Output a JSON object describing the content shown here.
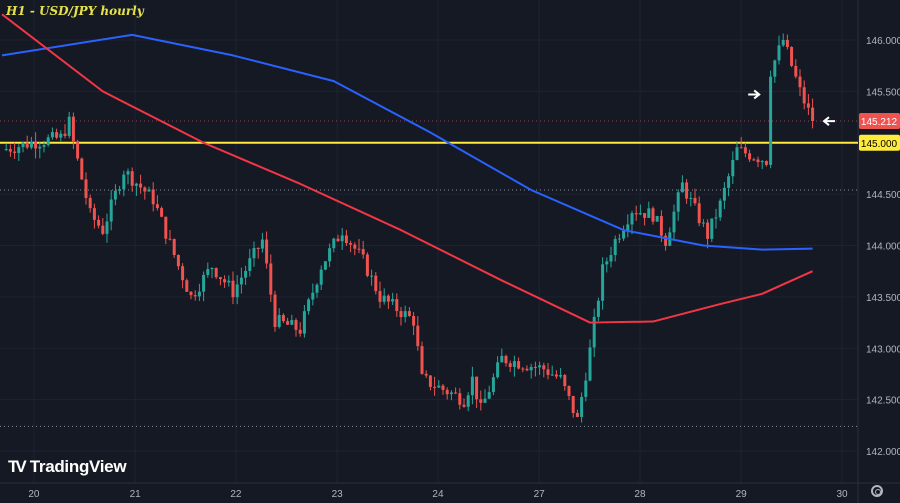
{
  "header": {
    "title": "H1 - USD/JPY hourly"
  },
  "branding": {
    "logo_text": "TradingView"
  },
  "colors": {
    "background": "#151924",
    "up": "#26a69a",
    "down": "#ef5350",
    "ma_blue": "#2962ff",
    "ma_red": "#f23645",
    "level": "#ffeb3b"
  },
  "chart_data": {
    "type": "candlestick",
    "title": "H1 - USD/JPY hourly",
    "ylim": [
      141.94,
      146.4
    ],
    "y_ticks": [
      "146.000",
      "145.500",
      "145.000",
      "144.500",
      "144.000",
      "143.500",
      "143.000",
      "142.500",
      "142.000"
    ],
    "y_tick_values": [
      146.0,
      145.5,
      145.0,
      144.5,
      144.0,
      143.5,
      143.0,
      142.5,
      142.0
    ],
    "x_ticks": [
      "20",
      "21",
      "22",
      "23",
      "24",
      "27",
      "28",
      "29",
      "30"
    ],
    "x_tick_bars": [
      7.6,
      31.7,
      55.7,
      79.8,
      103.8,
      127.9,
      151.9,
      176,
      200
    ],
    "bars_total": 194,
    "price_close_anchors": [
      [
        0,
        144.93
      ],
      [
        7,
        145.0
      ],
      [
        14,
        145.05
      ],
      [
        16,
        145.2
      ],
      [
        17,
        145.0
      ],
      [
        21,
        144.3
      ],
      [
        24,
        144.15
      ],
      [
        29,
        144.73
      ],
      [
        36,
        144.45
      ],
      [
        42,
        143.8
      ],
      [
        45,
        143.5
      ],
      [
        50,
        143.8
      ],
      [
        55,
        143.55
      ],
      [
        62,
        144.05
      ],
      [
        65,
        143.27
      ],
      [
        71,
        143.18
      ],
      [
        76,
        143.8
      ],
      [
        81,
        144.15
      ],
      [
        86,
        143.85
      ],
      [
        90,
        143.5
      ],
      [
        98,
        143.27
      ],
      [
        100,
        142.7
      ],
      [
        105,
        142.6
      ],
      [
        110,
        142.5
      ],
      [
        112,
        142.7
      ],
      [
        114,
        142.4
      ],
      [
        119,
        142.9
      ],
      [
        124,
        142.85
      ],
      [
        129,
        142.8
      ],
      [
        133,
        142.7
      ],
      [
        137,
        142.3
      ],
      [
        140,
        142.98
      ],
      [
        143,
        143.76
      ],
      [
        146,
        144.05
      ],
      [
        150,
        144.35
      ],
      [
        155,
        144.3
      ],
      [
        158,
        144.05
      ],
      [
        162,
        144.59
      ],
      [
        168,
        144.1
      ],
      [
        171,
        144.4
      ],
      [
        175,
        144.93
      ],
      [
        182,
        144.83
      ],
      [
        183,
        145.7
      ],
      [
        186,
        146.0
      ],
      [
        188,
        145.75
      ],
      [
        190,
        145.5
      ],
      [
        193,
        145.21
      ]
    ],
    "ma_blue": {
      "name": "MA (blue)",
      "points": [
        [
          0,
          145.85
        ],
        [
          31,
          146.05
        ],
        [
          55,
          145.85
        ],
        [
          79,
          145.6
        ],
        [
          102,
          145.1
        ],
        [
          126,
          144.54
        ],
        [
          148,
          144.15
        ],
        [
          167,
          144.0
        ],
        [
          181,
          143.96
        ],
        [
          193,
          143.97
        ]
      ]
    },
    "ma_red": {
      "name": "MA (red)",
      "points": [
        [
          0,
          146.25
        ],
        [
          24,
          145.5
        ],
        [
          48,
          145.0
        ],
        [
          71,
          144.6
        ],
        [
          95,
          144.15
        ],
        [
          119,
          143.66
        ],
        [
          140,
          143.25
        ],
        [
          155,
          143.26
        ],
        [
          171,
          143.43
        ],
        [
          181,
          143.53
        ],
        [
          193,
          143.75
        ]
      ]
    },
    "horizontal_lines": [
      {
        "name": "current-price-line",
        "price": 145.212,
        "label": "145.212",
        "style": "dotted"
      },
      {
        "name": "level-145",
        "price": 145.0,
        "label": "145.000",
        "style": "solid"
      },
      {
        "name": "support-high",
        "price": 144.54,
        "style": "dotted"
      },
      {
        "name": "support-low",
        "price": 142.24,
        "style": "dotted"
      }
    ],
    "annotations": [
      {
        "type": "arrow-right",
        "bar": 181,
        "price": 145.47
      },
      {
        "type": "arrow-left",
        "bar": 195,
        "price": 145.21
      }
    ]
  }
}
